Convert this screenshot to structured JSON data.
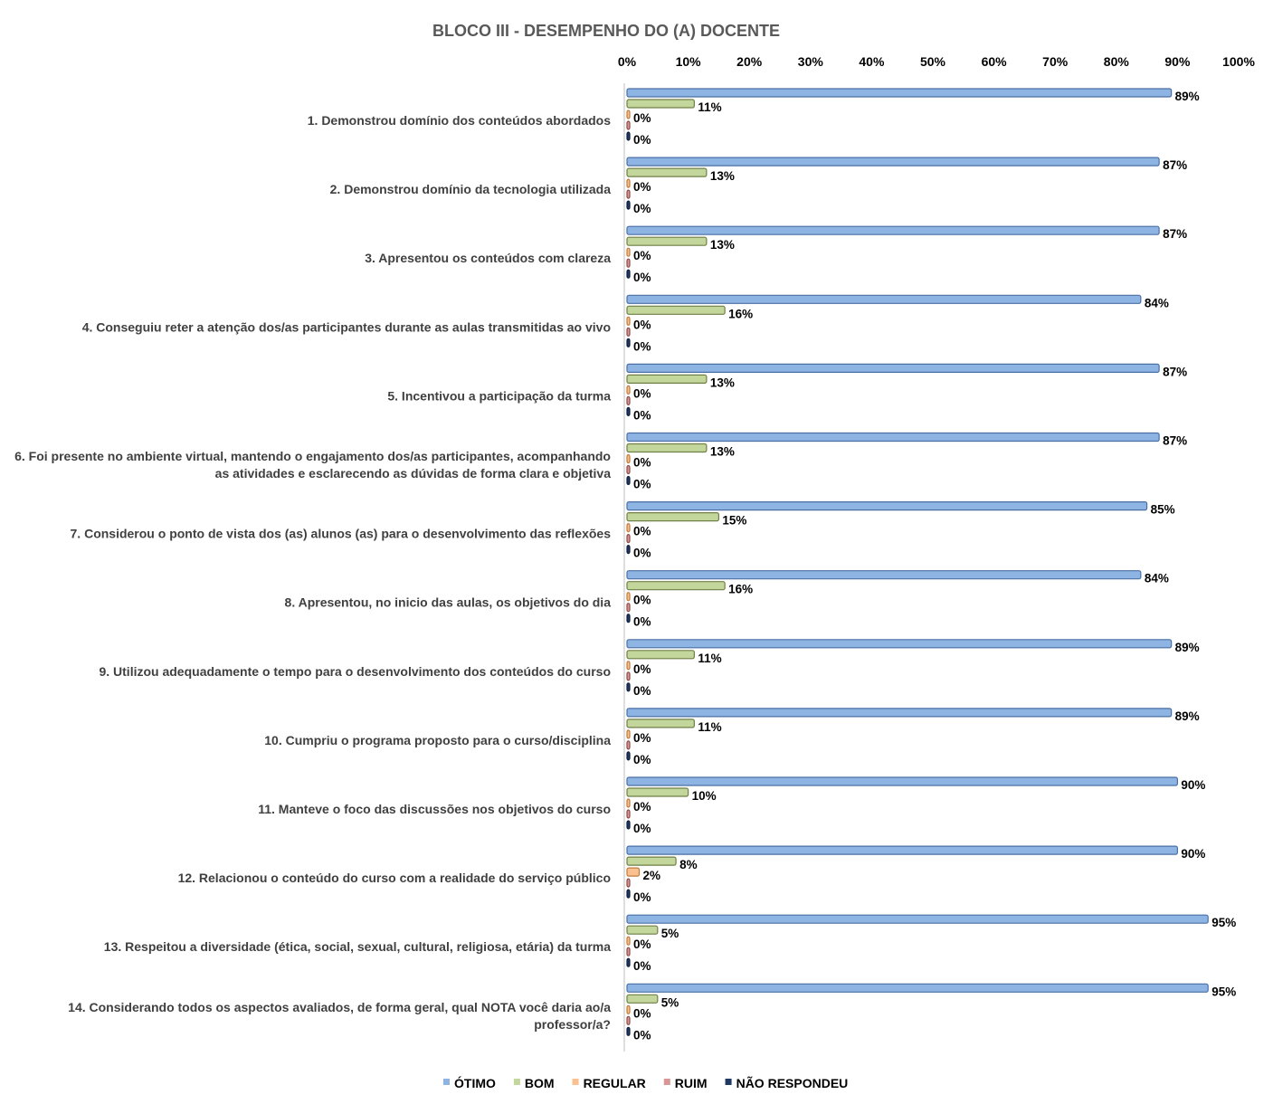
{
  "chart_data": {
    "type": "bar",
    "orientation": "horizontal",
    "title": "BLOCO III - DESEMPENHO DO (A) DOCENTE",
    "x_axis": {
      "position": "top",
      "range": [
        0,
        100
      ],
      "ticks": [
        "0%",
        "10%",
        "20%",
        "30%",
        "40%",
        "50%",
        "60%",
        "70%",
        "80%",
        "90%",
        "100%"
      ]
    },
    "categories": [
      [
        "1. Demonstrou domínio dos conteúdos abordados"
      ],
      [
        "2. Demonstrou domínio da tecnologia utilizada"
      ],
      [
        "3. Apresentou os conteúdos com clareza"
      ],
      [
        "4. Conseguiu reter a atenção dos/as participantes durante as aulas transmitidas ao vivo"
      ],
      [
        "5. Incentivou a participação da turma"
      ],
      [
        "6. Foi presente no ambiente virtual, mantendo o engajamento dos/as participantes, acompanhando",
        "as atividades e esclarecendo as dúvidas de forma clara e objetiva"
      ],
      [
        "7. Considerou o ponto de vista dos (as) alunos (as) para o desenvolvimento das reflexões"
      ],
      [
        "8. Apresentou, no inicio das aulas, os objetivos do dia"
      ],
      [
        "9. Utilizou adequadamente o tempo para o desenvolvimento dos conteúdos do curso"
      ],
      [
        "10. Cumpriu o programa proposto para o curso/disciplina"
      ],
      [
        "11. Manteve o foco das discussões nos objetivos do curso"
      ],
      [
        "12. Relacionou o conteúdo do curso com a realidade do serviço público"
      ],
      [
        "13. Respeitou a diversidade (ética, social, sexual, cultural, religiosa, etária) da turma"
      ],
      [
        "14. Considerando todos os aspectos avaliados, de forma geral, qual NOTA você daria ao/a",
        "professor/a?"
      ]
    ],
    "series": [
      {
        "name": "ÓTIMO",
        "color": "#8EB4E3",
        "edge": "#4A6FA5",
        "values": [
          89,
          87,
          87,
          84,
          87,
          87,
          85,
          84,
          89,
          89,
          90,
          90,
          95,
          95
        ],
        "labels": [
          "89%",
          "87%",
          "87%",
          "84%",
          "87%",
          "87%",
          "85%",
          "84%",
          "89%",
          "89%",
          "90%",
          "90%",
          "95%",
          "95%"
        ]
      },
      {
        "name": "BOM",
        "color": "#C3D69B",
        "edge": "#6F7F45",
        "values": [
          11,
          13,
          13,
          16,
          13,
          13,
          15,
          16,
          11,
          11,
          10,
          8,
          5,
          5
        ],
        "labels": [
          "11%",
          "13%",
          "13%",
          "16%",
          "13%",
          "13%",
          "15%",
          "16%",
          "11%",
          "11%",
          "10%",
          "8%",
          "5%",
          "5%"
        ]
      },
      {
        "name": "REGULAR",
        "color": "#FAC090",
        "edge": "#C07A3A",
        "values": [
          0,
          0,
          0,
          0,
          0,
          0,
          0,
          0,
          0,
          0,
          0,
          2,
          0,
          0
        ],
        "labels": [
          "0%",
          "0%",
          "0%",
          "0%",
          "0%",
          "0%",
          "0%",
          "0%",
          "0%",
          "0%",
          "0%",
          "2%",
          "0%",
          "0%"
        ]
      },
      {
        "name": "RUIM",
        "color": "#D99694",
        "edge": "#8B4A48",
        "values": [
          0,
          0,
          0,
          0,
          0,
          0,
          0,
          0,
          0,
          0,
          0,
          0,
          0,
          0
        ],
        "labels": [
          "0%",
          "0%",
          "0%",
          "0%",
          "0%",
          "0%",
          "0%",
          "0%",
          "0%",
          "0%",
          "0%",
          "0%",
          "0%",
          "0%"
        ]
      },
      {
        "name": "NÃO RESPONDEU",
        "color": "#1F3864",
        "edge": "#0F1F3D",
        "values": [
          0,
          0,
          0,
          0,
          0,
          0,
          0,
          0,
          0,
          0,
          0,
          0,
          0,
          0
        ],
        "labels": [
          "0%",
          "0%",
          "0%",
          "0%",
          "0%",
          "0%",
          "0%",
          "0%",
          "0%",
          "0%",
          "0%",
          "0%",
          "0%",
          "0%"
        ]
      }
    ],
    "label_series": [
      0,
      1,
      2,
      4
    ],
    "legend_position": "bottom",
    "grid": false
  }
}
